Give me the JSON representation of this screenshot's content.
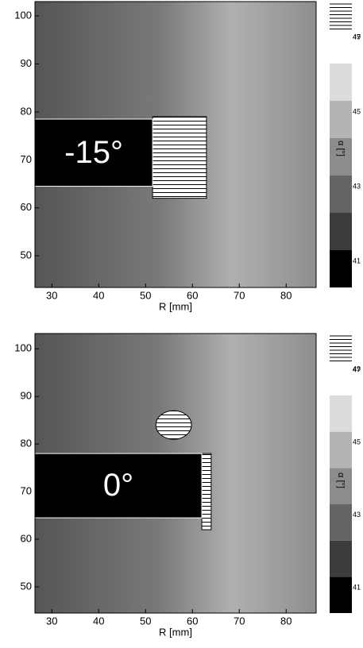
{
  "chart_data": [
    {
      "type": "contour",
      "label": "-15°",
      "xlabel": "R [mm]",
      "colorbar_label": "α [°]",
      "xlim": [
        26.4,
        86.4
      ],
      "xticks": [
        30,
        40,
        50,
        60,
        70,
        80
      ],
      "ylim": [
        43.4,
        103
      ],
      "yticks": [
        50,
        60,
        70,
        80,
        90,
        100
      ],
      "colorbar": {
        "ticks": [
          41,
          43,
          45,
          47,
          49
        ],
        "colors": [
          "#000000",
          "#3c3c3c",
          "#646464",
          "#8c8c8c",
          "#b4b4b4",
          "#dcdcdc"
        ]
      }
    },
    {
      "type": "contour",
      "label": "0°",
      "xlabel": "R [mm]",
      "colorbar_label": "α [°]",
      "xlim": [
        26.4,
        86.4
      ],
      "xticks": [
        30,
        40,
        50,
        60,
        70,
        80
      ],
      "ylim": [
        44.5,
        103.2
      ],
      "yticks": [
        50,
        60,
        70,
        80,
        90,
        100
      ],
      "colorbar": {
        "ticks": [
          41,
          43,
          45,
          47,
          49
        ],
        "colors": [
          "#000000",
          "#3c3c3c",
          "#646464",
          "#8c8c8c",
          "#b4b4b4",
          "#dcdcdc"
        ]
      }
    }
  ]
}
